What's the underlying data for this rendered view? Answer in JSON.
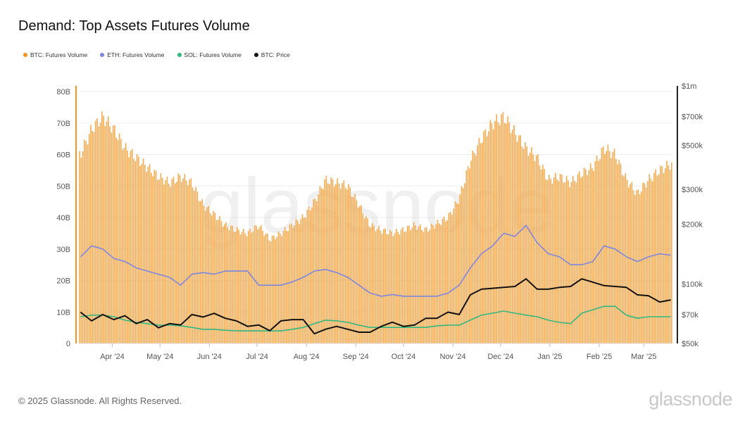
{
  "title": "Demand: Top Assets Futures Volume",
  "footer": "© 2025 Glassnode. All Rights Reserved.",
  "logo_text": "glassnode",
  "watermark": "glassnode",
  "chart_data": {
    "type": "bar+line",
    "title": "Demand: Top Assets Futures Volume",
    "legend_position": "top-left",
    "grid": true,
    "x_tick_labels": [
      "Apr '24",
      "May '24",
      "Jun '24",
      "Jul '24",
      "Aug '24",
      "Sep '24",
      "Oct '24",
      "Nov '24",
      "Dec '24",
      "Jan '25",
      "Feb '25",
      "Mar '25"
    ],
    "x_tick_dates": [
      "2024-04-01",
      "2024-05-01",
      "2024-06-01",
      "2024-07-01",
      "2024-08-01",
      "2024-09-01",
      "2024-10-01",
      "2024-11-01",
      "2024-12-01",
      "2025-01-01",
      "2025-02-01",
      "2025-03-01"
    ],
    "y_left": {
      "ticks": [
        0,
        10,
        20,
        30,
        40,
        50,
        60,
        70,
        80
      ],
      "tick_labels": [
        "0",
        "10B",
        "20B",
        "30B",
        "40B",
        "50B",
        "60B",
        "70B",
        "80B"
      ],
      "range": [
        0,
        80
      ],
      "unit": "B"
    },
    "y_right": {
      "scale": "log",
      "ticks": [
        50000,
        70000,
        100000,
        200000,
        300000,
        500000,
        700000,
        1000000
      ],
      "tick_labels": [
        "$50k",
        "$70k",
        "$100k",
        "$200k",
        "$300k",
        "$500k",
        "$700k",
        "$1m"
      ],
      "range": [
        50000,
        1000000
      ]
    },
    "dates": [
      "2024-03-12",
      "2024-03-19",
      "2024-03-26",
      "2024-04-02",
      "2024-04-09",
      "2024-04-16",
      "2024-04-23",
      "2024-04-30",
      "2024-05-07",
      "2024-05-14",
      "2024-05-21",
      "2024-05-28",
      "2024-06-04",
      "2024-06-11",
      "2024-06-18",
      "2024-06-25",
      "2024-07-02",
      "2024-07-09",
      "2024-07-16",
      "2024-07-23",
      "2024-07-30",
      "2024-08-06",
      "2024-08-13",
      "2024-08-20",
      "2024-08-27",
      "2024-09-03",
      "2024-09-10",
      "2024-09-17",
      "2024-09-24",
      "2024-10-01",
      "2024-10-08",
      "2024-10-15",
      "2024-10-22",
      "2024-10-29",
      "2024-11-05",
      "2024-11-12",
      "2024-11-19",
      "2024-11-26",
      "2024-12-03",
      "2024-12-10",
      "2024-12-17",
      "2024-12-24",
      "2024-12-31",
      "2025-01-07",
      "2025-01-14",
      "2025-01-21",
      "2025-01-28",
      "2025-02-04",
      "2025-02-11",
      "2025-02-18",
      "2025-02-25",
      "2025-03-04",
      "2025-03-11",
      "2025-03-18"
    ],
    "series": [
      {
        "name": "BTC: Futures Volume",
        "type": "bar",
        "axis": "left",
        "color": "#f7931a",
        "values": [
          60,
          68,
          72,
          68,
          62,
          59,
          56,
          53,
          51,
          53,
          51,
          44,
          41,
          37.5,
          36,
          35,
          37.5,
          33,
          35,
          37.5,
          40,
          45,
          52,
          51,
          50,
          44,
          37.5,
          36,
          35,
          36,
          37.5,
          36,
          38,
          40,
          46,
          58,
          65,
          70,
          72,
          67,
          62,
          59,
          52,
          53,
          51,
          54,
          56,
          62,
          60,
          52,
          47.5,
          52,
          55,
          57
        ]
      },
      {
        "name": "ETH: Futures Volume",
        "type": "line",
        "axis": "left",
        "color": "#7b86e0",
        "values": [
          27.5,
          31,
          30,
          27,
          26,
          24,
          23,
          22,
          21,
          18.5,
          22,
          22.5,
          22,
          23,
          23,
          23,
          18.5,
          18.5,
          18.5,
          19.5,
          21,
          23,
          23.5,
          22.5,
          21,
          18.5,
          16,
          15,
          15.5,
          15,
          15,
          15,
          15,
          16,
          18.5,
          24,
          28.5,
          31,
          35,
          34,
          37.5,
          32,
          28.5,
          27.5,
          25,
          25,
          26,
          31,
          30,
          27.5,
          26,
          27.5,
          28.5,
          28
        ]
      },
      {
        "name": "SOL: Futures Volume",
        "type": "line",
        "axis": "left",
        "color": "#2fb87f",
        "values": [
          8.5,
          9,
          9,
          8.5,
          7.4,
          6.7,
          6.3,
          5.8,
          5.8,
          5.6,
          5.1,
          4.5,
          4.5,
          4.2,
          4.0,
          4.0,
          4.0,
          4.0,
          4.0,
          4.5,
          5.1,
          6.3,
          7.4,
          7.2,
          6.7,
          5.8,
          5.1,
          5.1,
          5.1,
          5.1,
          5.1,
          5.1,
          5.6,
          5.8,
          5.8,
          7.4,
          9,
          9.6,
          10.3,
          9.6,
          9,
          8.5,
          7.4,
          6.7,
          6.3,
          9.6,
          10.7,
          11.8,
          11.8,
          9,
          8,
          8.5,
          8.5,
          8.5
        ]
      },
      {
        "name": "BTC: Price",
        "type": "line",
        "axis": "right",
        "color": "#111111",
        "values": [
          72000,
          65000,
          70000,
          66000,
          69000,
          63000,
          66000,
          60000,
          63000,
          62000,
          70000,
          68000,
          71000,
          67000,
          65000,
          61000,
          62000,
          58000,
          65000,
          66000,
          66000,
          56000,
          59000,
          61000,
          59000,
          57000,
          57000,
          61000,
          64000,
          61000,
          62000,
          67000,
          67000,
          72000,
          70000,
          88000,
          94000,
          95000,
          96000,
          97000,
          106000,
          94000,
          94000,
          96000,
          97000,
          106000,
          102000,
          98000,
          97000,
          96000,
          88000,
          87000,
          81000,
          83000
        ]
      }
    ]
  }
}
